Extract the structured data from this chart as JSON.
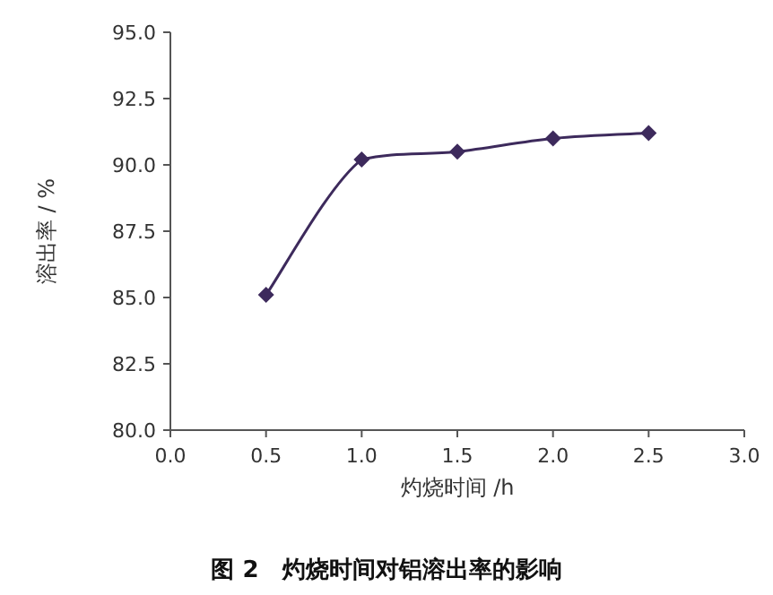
{
  "chart_data": {
    "type": "line",
    "title": "图 2　灼烧时间对铝溶出率的影响",
    "xlabel": "灼烧时间 /h",
    "ylabel": "溶出率 / %",
    "x": [
      0.5,
      1.0,
      1.5,
      2.0,
      2.5
    ],
    "series": [
      {
        "color": "#3d2a5c",
        "values": [
          85.1,
          90.2,
          90.5,
          91.0,
          91.2
        ]
      }
    ],
    "xlim": [
      0,
      3
    ],
    "ylim": [
      80,
      95
    ],
    "xticks": [
      {
        "value": 0,
        "label": "0.0"
      },
      {
        "value": 0.5,
        "label": "0.5"
      },
      {
        "value": 1,
        "label": "1.0"
      },
      {
        "value": 1.5,
        "label": "1.5"
      },
      {
        "value": 2,
        "label": "2.0"
      },
      {
        "value": 2.5,
        "label": "2.5"
      },
      {
        "value": 3,
        "label": "3.0"
      }
    ],
    "yticks": [
      {
        "value": 80,
        "label": "80.0"
      },
      {
        "value": 82.5,
        "label": "82.5"
      },
      {
        "value": 85,
        "label": "85.0"
      },
      {
        "value": 87.5,
        "label": "87.5"
      },
      {
        "value": 90,
        "label": "90.0"
      },
      {
        "value": 92.5,
        "label": "92.5"
      },
      {
        "value": 95,
        "label": "95.0"
      }
    ],
    "grid": false,
    "marker": "diamond",
    "line_style": "solid"
  }
}
